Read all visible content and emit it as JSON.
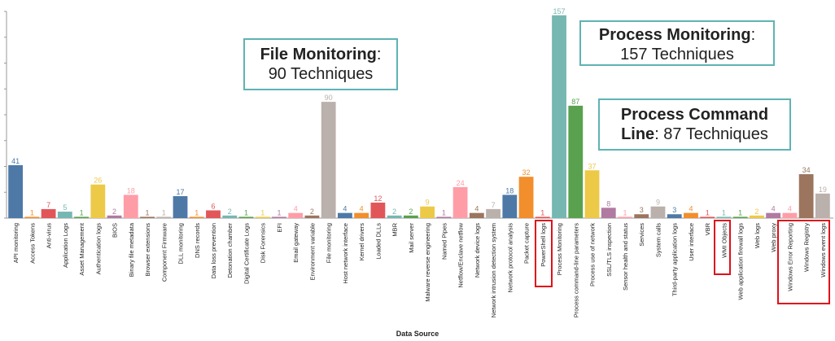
{
  "chart_data": {
    "type": "bar",
    "xlabel": "Data Source",
    "categories": [
      "API monitoring",
      "Access Tokens",
      "Anti-virus",
      "Application Logs",
      "Asset Management",
      "Authentication logs",
      "BIOS",
      "Binary file metadata",
      "Browser extensions",
      "Component Firmware",
      "DLL monitoring",
      "DNS records",
      "Data loss prevention",
      "Detonation chamber",
      "Digital Certificate Logs",
      "Disk Forensics",
      "EFI",
      "Email gateway",
      "Environment variable",
      "File monitoring",
      "Host network interface",
      "Kernel drivers",
      "Loaded DLLs",
      "MBR",
      "Mail server",
      "Malware reverse engineering",
      "Named Pipes",
      "Netflow/Enclave netflow",
      "Network device logs",
      "Network intrusion detection system",
      "Network protocol analysis",
      "Packet capture",
      "PowerShell logs",
      "Process Monitoring",
      "Process command-line parameters",
      "Process use of network",
      "SSL/TLS inspection",
      "Sensor health and status",
      "Services",
      "System calls",
      "Third-party application logs",
      "User interface",
      "VBR",
      "WMI Objects",
      "Web application firewall logs",
      "Web logs",
      "Web proxy",
      "Windows Error Reporting",
      "Windows Registry",
      "Windows event logs"
    ],
    "values": [
      41,
      1,
      7,
      5,
      1,
      26,
      2,
      18,
      1,
      1,
      17,
      1,
      6,
      2,
      1,
      1,
      1,
      4,
      2,
      90,
      4,
      4,
      12,
      2,
      2,
      9,
      1,
      24,
      4,
      7,
      18,
      32,
      1,
      157,
      87,
      37,
      8,
      1,
      3,
      9,
      3,
      4,
      1,
      1,
      1,
      2,
      4,
      4,
      34,
      19
    ],
    "colors": [
      "#4e79a7",
      "#f28e2b",
      "#e15759",
      "#76b7b2",
      "#59a14f",
      "#edc948",
      "#b07aa1",
      "#ff9da7",
      "#9c755f",
      "#bab0ac"
    ],
    "ylim": [
      0,
      160
    ]
  },
  "callouts": {
    "file": {
      "title": "File Monitoring",
      "suffix": ":",
      "text": "90 Techniques"
    },
    "process": {
      "title": "Process Monitoring",
      "suffix": ":",
      "text": "157 Techniques"
    },
    "cmdline": {
      "title_a": "Process Command",
      "title_b": "Line",
      "suffix": ": 87 Techniques"
    }
  },
  "highlighted_sources": [
    "PowerShell logs",
    "WMI Objects",
    "Windows Error Reporting",
    "Windows Registry",
    "Windows event logs"
  ]
}
